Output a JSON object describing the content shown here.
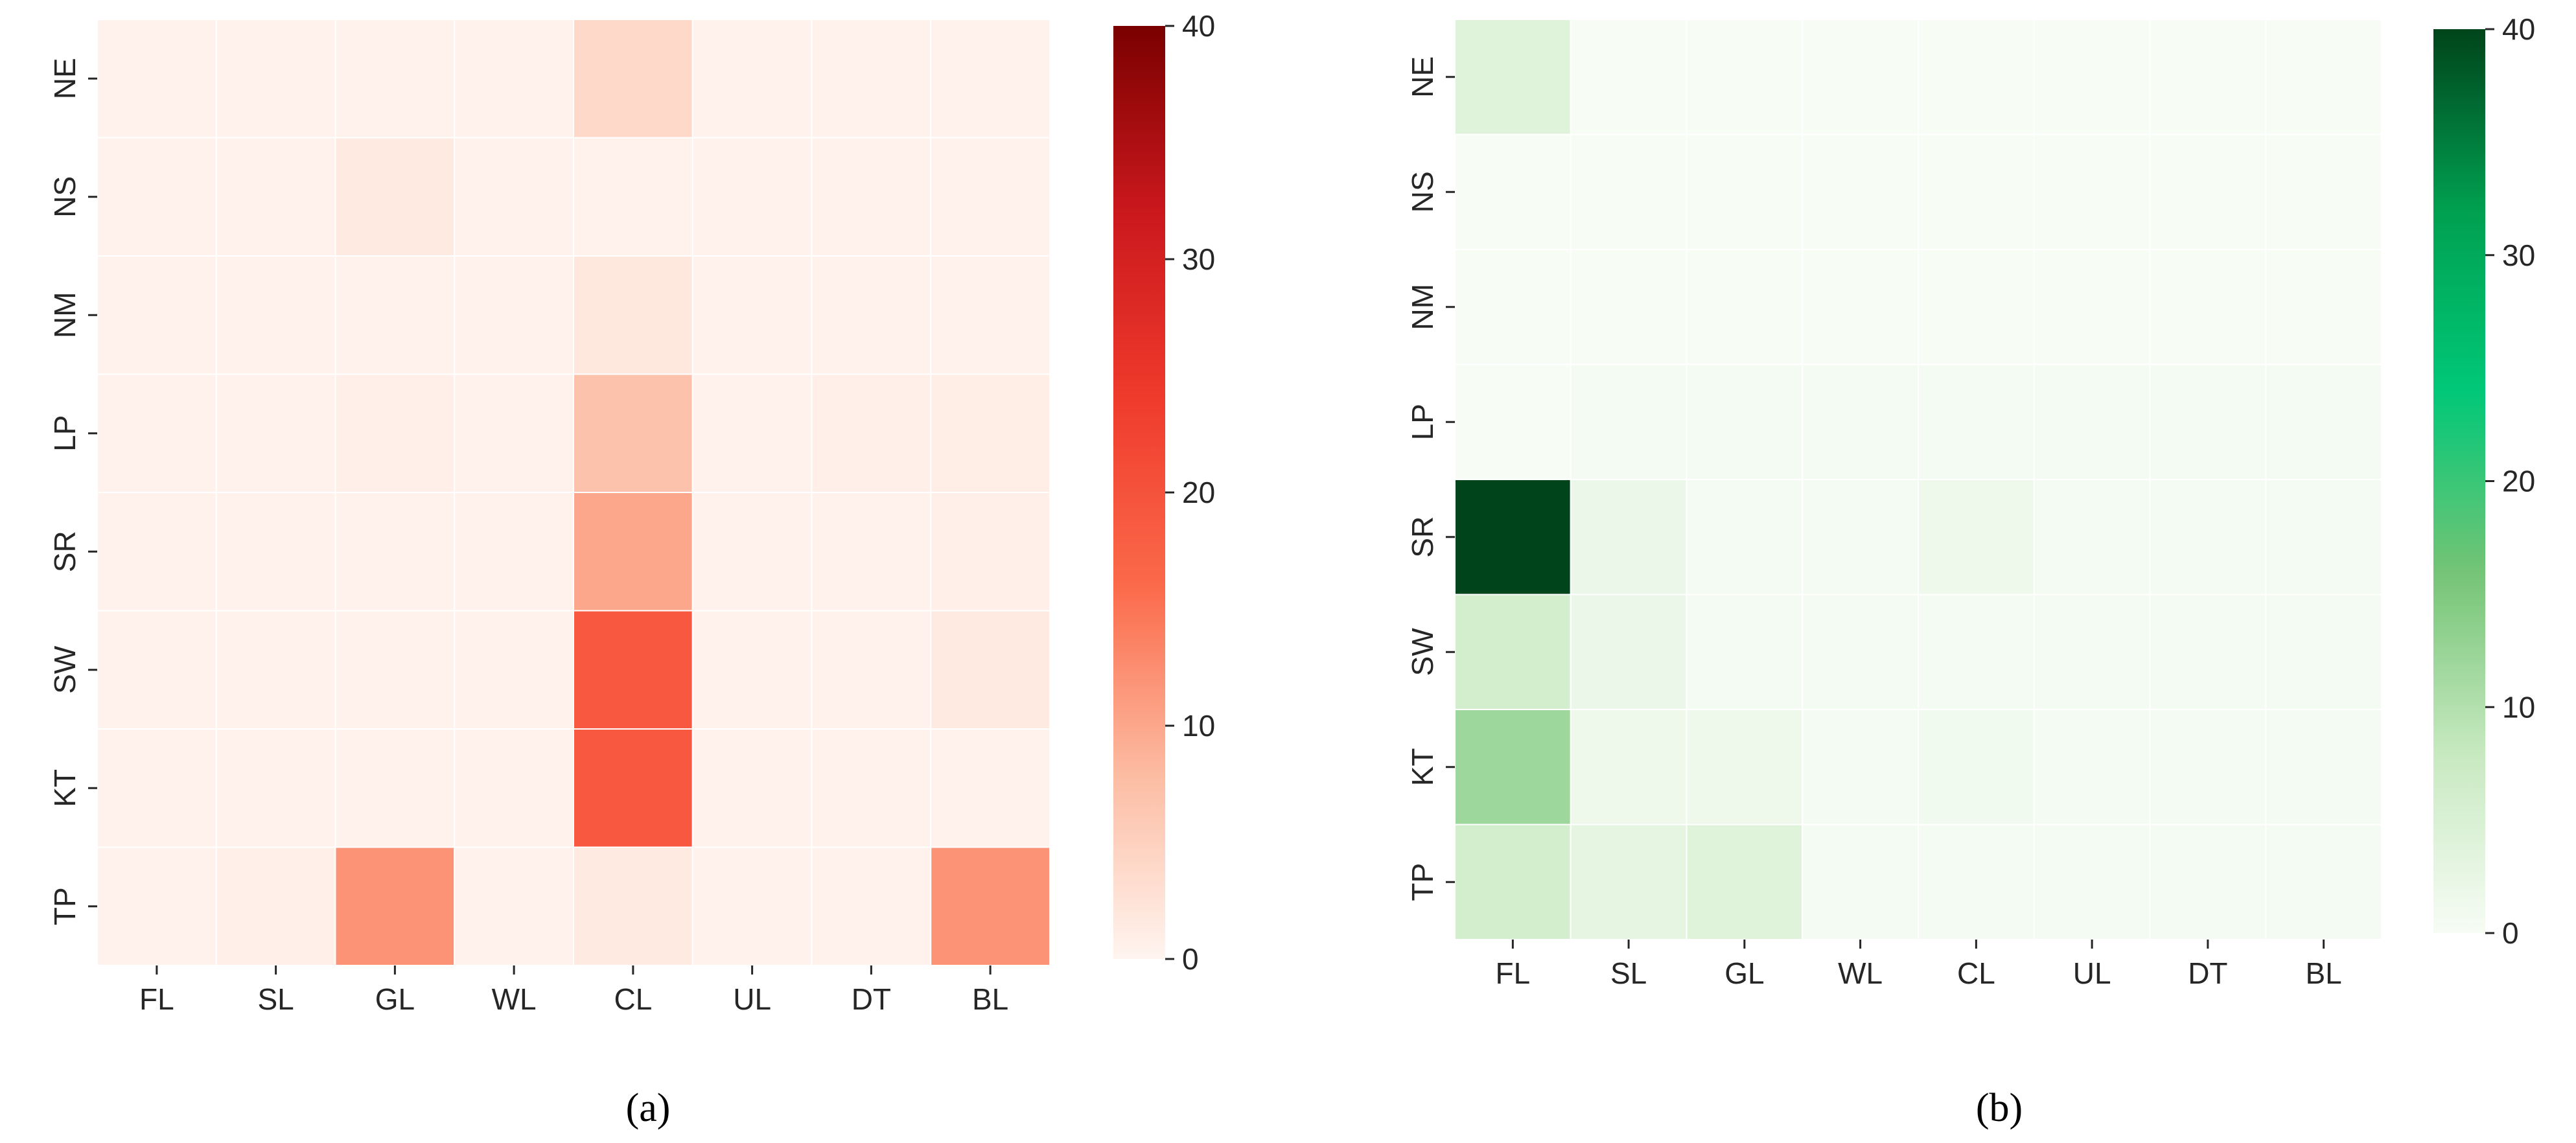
{
  "chart_data": [
    {
      "type": "heatmap",
      "panel": "a",
      "caption": "(a)",
      "x_categories": [
        "FL",
        "SL",
        "GL",
        "WL",
        "CL",
        "UL",
        "DT",
        "BL"
      ],
      "y_categories": [
        "NE",
        "NS",
        "NM",
        "LP",
        "SR",
        "SW",
        "KT",
        "TP"
      ],
      "values": [
        [
          0.5,
          0.5,
          0.5,
          0.5,
          4.0,
          0.5,
          0.5,
          0.5
        ],
        [
          0.5,
          0.5,
          1.5,
          0.5,
          0.5,
          0.5,
          0.5,
          0.5
        ],
        [
          0.5,
          0.5,
          0.5,
          0.5,
          2.0,
          0.5,
          0.5,
          0.5
        ],
        [
          0.5,
          0.5,
          0.8,
          0.5,
          7.0,
          0.5,
          0.8,
          1.0
        ],
        [
          0.5,
          0.5,
          0.5,
          0.5,
          10.0,
          0.5,
          0.5,
          0.8
        ],
        [
          0.5,
          0.5,
          0.5,
          0.5,
          19.0,
          0.5,
          0.5,
          1.5
        ],
        [
          0.5,
          0.5,
          0.5,
          0.5,
          19.0,
          0.5,
          0.5,
          0.5
        ],
        [
          0.5,
          0.8,
          12.0,
          0.5,
          1.5,
          0.5,
          0.5,
          12.0
        ]
      ],
      "colorbar": {
        "min": 0,
        "max": 40,
        "ticks": [
          0,
          10,
          20,
          30,
          40
        ],
        "colors": [
          "#fff5f0",
          "#fcbba1",
          "#fb6a4a",
          "#ef3b2c",
          "#cb181d",
          "#7a0000"
        ]
      }
    },
    {
      "type": "heatmap",
      "panel": "b",
      "caption": "(b)",
      "x_categories": [
        "FL",
        "SL",
        "GL",
        "WL",
        "CL",
        "UL",
        "DT",
        "BL"
      ],
      "y_categories": [
        "NE",
        "NS",
        "NM",
        "LP",
        "SR",
        "SW",
        "KT",
        "TP"
      ],
      "values": [
        [
          4.0,
          0.0,
          0.0,
          0.0,
          0.0,
          0.0,
          0.0,
          0.0
        ],
        [
          0.0,
          0.0,
          0.0,
          0.0,
          0.0,
          0.0,
          0.0,
          0.0
        ],
        [
          0.0,
          0.0,
          0.0,
          0.0,
          0.0,
          0.0,
          0.0,
          0.0
        ],
        [
          0.0,
          0.5,
          0.5,
          0.5,
          0.5,
          0.5,
          0.5,
          0.5
        ],
        [
          40.0,
          2.0,
          0.5,
          0.5,
          1.5,
          0.5,
          0.5,
          0.5
        ],
        [
          6.0,
          2.0,
          0.5,
          0.5,
          0.5,
          0.5,
          0.5,
          0.5
        ],
        [
          12.0,
          1.5,
          1.5,
          0.5,
          1.0,
          0.5,
          0.5,
          0.5
        ],
        [
          6.0,
          3.0,
          4.0,
          0.5,
          0.5,
          0.5,
          0.5,
          0.5
        ]
      ],
      "colorbar": {
        "min": 0,
        "max": 40,
        "ticks": [
          0,
          10,
          20,
          30,
          40
        ],
        "colors": [
          "#f7fcf5",
          "#c7e9c0",
          "#74c476",
          "#00c878",
          "#00a050",
          "#00441b"
        ]
      }
    }
  ]
}
